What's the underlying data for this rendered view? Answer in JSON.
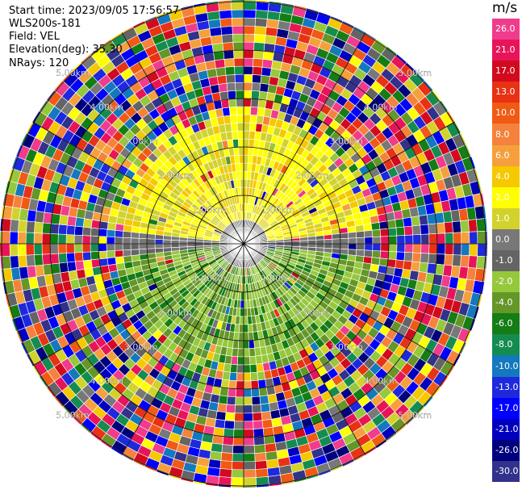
{
  "header": {
    "start_time": "Start time: 2023/09/05 17:56:57",
    "instrument": "WLS200s-181",
    "field": "Field: VEL",
    "elevation": "Elevation(deg): 35.30",
    "nrays": "NRays: 120"
  },
  "chart_data": {
    "type": "heatmap",
    "projection": "polar PPI",
    "field": "VEL",
    "units": "m/s",
    "nrays": 120,
    "elevation_deg": 35.3,
    "range_rings_km": [
      1.0,
      2.0,
      3.0,
      4.0,
      5.0
    ],
    "range_ring_labels": [
      "1.00km",
      "2.00km",
      "3.00km",
      "4.00km",
      "5.00km"
    ],
    "azimuth_lines_deg": [
      0,
      30,
      60,
      90,
      120,
      150,
      180,
      210,
      240,
      270,
      300,
      330
    ],
    "near_field_pattern": "north half positive (yellow, +1 to +4 m/s), south half negative (green, -2 to -6 m/s), beyond ~2.5 km noise",
    "colorbar": {
      "label": "m/s",
      "tick_labels": [
        "26.0",
        "21.0",
        "17.0",
        "13.0",
        "10.0",
        "8.0",
        "6.0",
        "4.0",
        "2.0",
        "1.0",
        "0.0",
        "-1.0",
        "-2.0",
        "-4.0",
        "-6.0",
        "-8.0",
        "-10.0",
        "-13.0",
        "-17.0",
        "-21.0",
        "-26.0",
        "-30.0"
      ],
      "colors": [
        "#f03c8c",
        "#e8145a",
        "#d20a1e",
        "#e83214",
        "#f05a14",
        "#f5823c",
        "#f5a03c",
        "#f5c800",
        "#ffff00",
        "#d2d22d",
        "#787878",
        "#646464",
        "#96c83c",
        "#649628",
        "#147d14",
        "#148c50",
        "#1478be",
        "#1e28dc",
        "#0000ff",
        "#0000be",
        "#00007d",
        "#32328c"
      ]
    }
  }
}
